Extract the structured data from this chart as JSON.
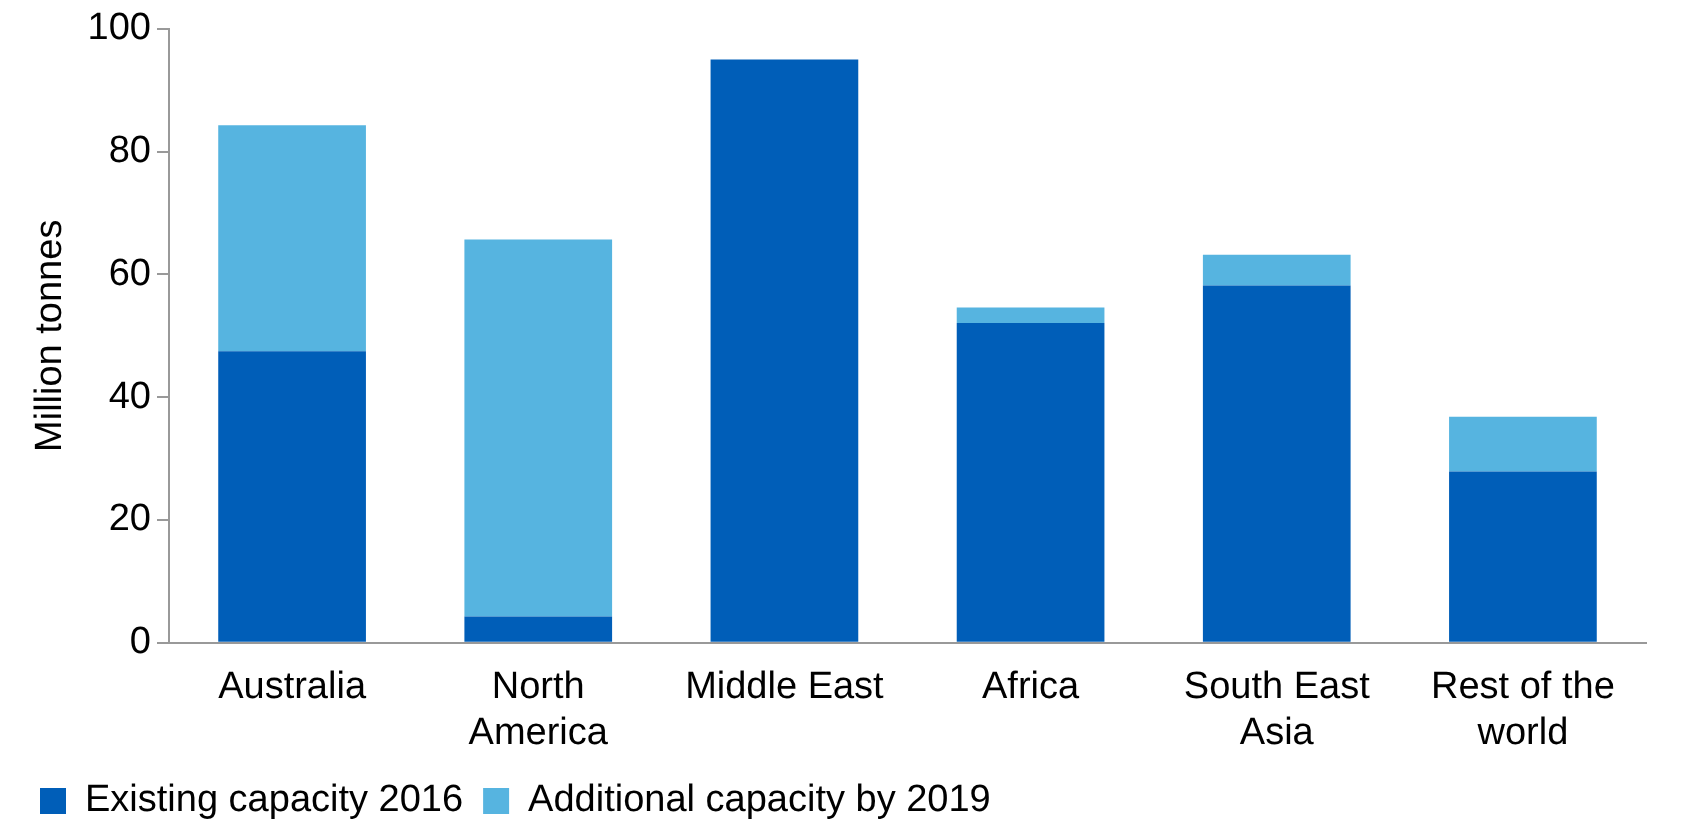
{
  "chart_data": {
    "type": "bar",
    "stacked": true,
    "ylabel": "Million tonnes",
    "categories": [
      "Australia",
      "North America",
      "Middle East",
      "Africa",
      "South East Asia",
      "Rest of the world"
    ],
    "series": [
      {
        "name": "Existing capacity 2016",
        "color": "#005eb8",
        "values": [
          47.5,
          4.3,
          95,
          52.1,
          58.2,
          27.9
        ]
      },
      {
        "name": "Additional capacity by 2019",
        "color": "#56b4e0",
        "values": [
          36.8,
          61.4,
          0,
          2.5,
          5,
          8.9
        ]
      }
    ],
    "ylim": [
      0,
      100
    ],
    "yticks": [
      0,
      20,
      40,
      60,
      80,
      100
    ],
    "grid": false,
    "legend": "bottom"
  }
}
